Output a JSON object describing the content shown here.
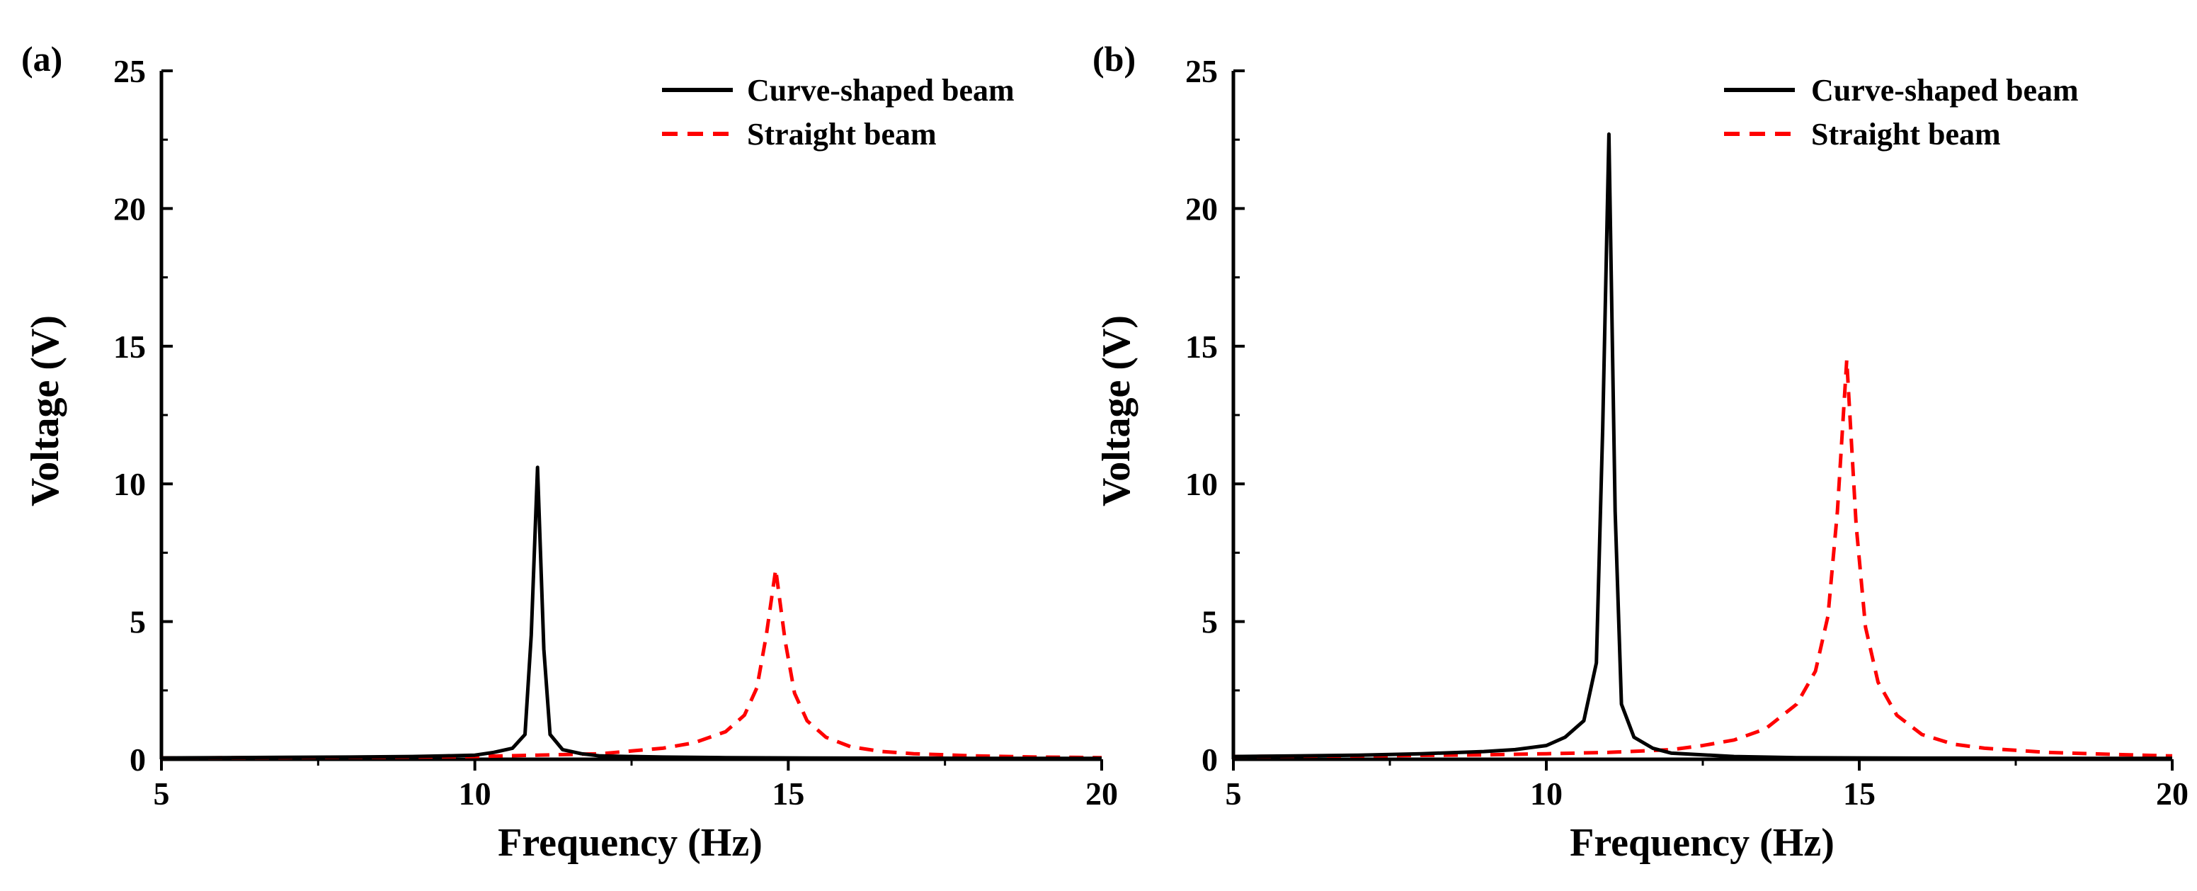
{
  "chart_data": [
    {
      "panel_label": "(a)",
      "type": "line",
      "xlabel": "Frequency (Hz)",
      "ylabel": "Voltage  (V)",
      "xlim": [
        5,
        20
      ],
      "ylim": [
        0,
        25
      ],
      "xticks": [
        5,
        10,
        15,
        20
      ],
      "yticks": [
        0,
        5,
        10,
        15,
        20,
        25
      ],
      "legend_position": "top-right",
      "series": [
        {
          "name": "Curve-shaped beam",
          "color": "#000000",
          "style": "solid",
          "x": [
            5,
            6,
            7,
            8,
            9,
            9.5,
            10,
            10.3,
            10.6,
            10.8,
            10.9,
            11.0,
            11.1,
            11.2,
            11.4,
            11.7,
            12,
            13,
            14,
            15,
            16,
            17,
            18,
            19,
            20
          ],
          "y": [
            0.05,
            0.06,
            0.07,
            0.08,
            0.1,
            0.12,
            0.15,
            0.25,
            0.4,
            0.9,
            4.5,
            10.6,
            4.0,
            0.9,
            0.35,
            0.2,
            0.12,
            0.08,
            0.06,
            0.05,
            0.04,
            0.04,
            0.03,
            0.03,
            0.03
          ]
        },
        {
          "name": "Straight beam",
          "color": "#ff0000",
          "style": "dashed",
          "x": [
            5,
            7,
            9,
            10,
            11,
            12,
            12.5,
            13,
            13.5,
            14,
            14.3,
            14.5,
            14.65,
            14.8,
            14.95,
            15.1,
            15.3,
            15.6,
            16,
            16.5,
            17,
            18,
            19,
            20
          ],
          "y": [
            0.05,
            0.06,
            0.08,
            0.1,
            0.15,
            0.2,
            0.3,
            0.4,
            0.6,
            1.0,
            1.6,
            2.6,
            4.5,
            6.9,
            4.3,
            2.4,
            1.4,
            0.8,
            0.45,
            0.28,
            0.2,
            0.12,
            0.08,
            0.06
          ]
        }
      ]
    },
    {
      "panel_label": "(b)",
      "type": "line",
      "xlabel": "Frequency (Hz)",
      "ylabel": "Voltage  (V)",
      "xlim": [
        5,
        20
      ],
      "ylim": [
        0,
        25
      ],
      "xticks": [
        5,
        10,
        15,
        20
      ],
      "yticks": [
        0,
        5,
        10,
        15,
        20,
        25
      ],
      "legend_position": "top-right",
      "series": [
        {
          "name": "Curve-shaped beam",
          "color": "#000000",
          "style": "solid",
          "x": [
            5,
            6,
            7,
            8,
            9,
            9.5,
            10,
            10.3,
            10.6,
            10.8,
            10.9,
            11.0,
            11.1,
            11.2,
            11.4,
            11.7,
            12,
            13,
            14,
            15,
            16,
            17,
            18,
            19,
            20
          ],
          "y": [
            0.1,
            0.12,
            0.15,
            0.2,
            0.28,
            0.35,
            0.5,
            0.8,
            1.4,
            3.5,
            12.0,
            22.7,
            9.0,
            2.0,
            0.8,
            0.4,
            0.22,
            0.1,
            0.06,
            0.05,
            0.04,
            0.04,
            0.03,
            0.03,
            0.03
          ]
        },
        {
          "name": "Straight beam",
          "color": "#ff0000",
          "style": "dashed",
          "x": [
            5,
            7,
            9,
            10,
            11,
            12,
            12.5,
            13,
            13.5,
            14,
            14.3,
            14.5,
            14.65,
            14.8,
            14.95,
            15.1,
            15.3,
            15.6,
            16,
            16.5,
            17,
            18,
            19,
            20
          ],
          "y": [
            0.1,
            0.12,
            0.16,
            0.2,
            0.25,
            0.35,
            0.5,
            0.7,
            1.1,
            2.0,
            3.2,
            5.2,
            9.0,
            14.5,
            8.5,
            4.8,
            2.8,
            1.6,
            0.9,
            0.55,
            0.4,
            0.25,
            0.18,
            0.12
          ]
        }
      ]
    }
  ]
}
